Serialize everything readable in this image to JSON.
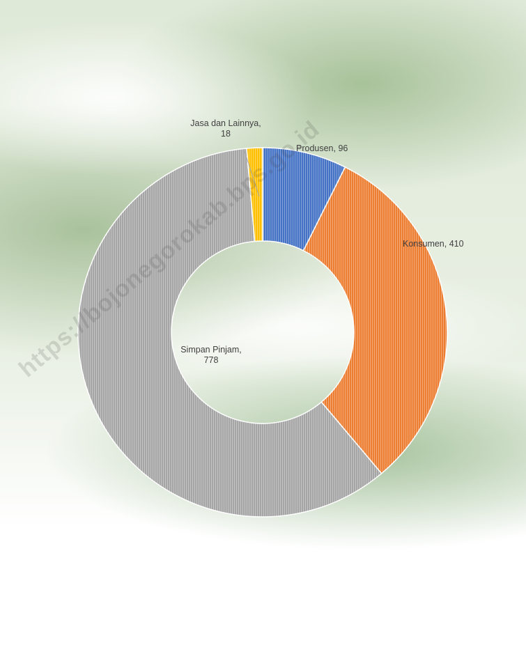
{
  "chart_data": {
    "type": "donut",
    "values": [
      96,
      410,
      778,
      18
    ],
    "value_labels": [
      "Produsen, 96",
      "Konsumen, 410",
      "Simpan Pinjam, 778",
      "Jasa dan Lainnya, 18"
    ],
    "colors": [
      "#4472c4",
      "#ed7d31",
      "#a5a5a5",
      "#ffc000"
    ],
    "start_angle": 0,
    "direction": "clockwise"
  },
  "watermark": "https://bojonegorokab.bps.go.id"
}
